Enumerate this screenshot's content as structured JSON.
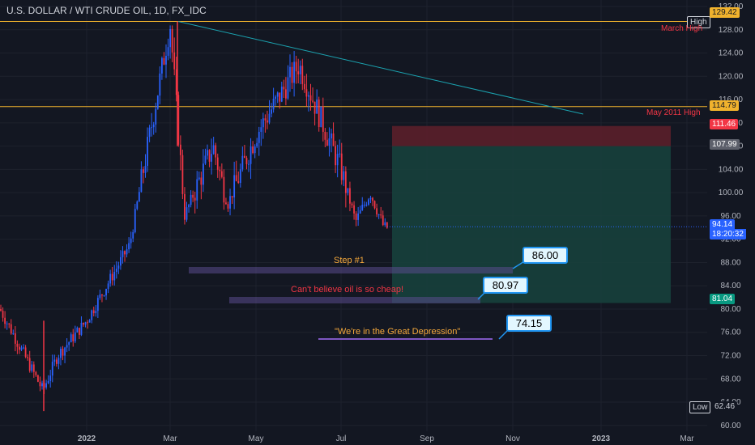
{
  "title": "U.S. DOLLAR / WTI CRUDE OIL, 1D, FX_IDC",
  "colors": {
    "background": "#131722",
    "up": "#2962ff",
    "down": "#f23645",
    "text": "#b2b5be",
    "grid": "#1e222d",
    "hline": "#f0b22d",
    "trendline": "#1ba3b0",
    "stop_zone": "#5b1f2a",
    "target_zone": "#17403c",
    "annotation_purple": "#5a4a8c",
    "annotation_orange": "#f6a93b",
    "annotation_red": "#f23645"
  },
  "price_labels": {
    "high_label": "High",
    "high_value": "129.42",
    "low_label": "Low",
    "low_value": "62.46",
    "level_114": "114.79",
    "level_111": "111.46",
    "level_108": "107.99",
    "current": "94.14",
    "countdown": "18:20:32",
    "level_81": "81.04"
  },
  "annotations": {
    "march_high": "March High",
    "may_2011_high": "May 2011 High",
    "step1": "Step #1",
    "cheap": "Can't believe oil is so cheap!",
    "depression": "\"We're in the Great Depression\"",
    "badge1": "86.00",
    "badge2": "80.97",
    "badge3": "74.15"
  },
  "chart_data": {
    "type": "candlestick",
    "title": "U.S. DOLLAR / WTI CRUDE OIL, 1D, FX_IDC",
    "x_ticks": [
      "2022",
      "Mar",
      "May",
      "Jul",
      "Sep",
      "Nov",
      "2023",
      "Mar"
    ],
    "y_ticks": [
      60,
      64,
      68,
      72,
      76,
      80,
      84,
      88,
      92,
      96,
      100,
      104,
      108,
      112,
      116,
      120,
      124,
      128,
      132
    ],
    "ylim": [
      59,
      132
    ],
    "high": 129.42,
    "low": 62.46,
    "last": 94.14,
    "horizontal_levels": [
      {
        "label": "March High",
        "value": 129.42
      },
      {
        "label": "May 2011 High",
        "value": 114.79
      }
    ],
    "position": {
      "stop_top": 111.46,
      "entry": 107.99,
      "target": 81.04
    },
    "trendline": [
      {
        "date": "Mar 2022",
        "value": 129.42
      },
      {
        "date": "Dec 2022",
        "value": 113.5
      }
    ],
    "price_path": [
      {
        "date": "Nov 2021",
        "value": 80
      },
      {
        "date": "Dec 2021",
        "value": 66
      },
      {
        "date": "Dec 2021",
        "value": 72
      },
      {
        "date": "Jan 2022",
        "value": 78
      },
      {
        "date": "Feb 2022",
        "value": 91
      },
      {
        "date": "Mar 2022",
        "value": 129
      },
      {
        "date": "Mar 2022",
        "value": 96
      },
      {
        "date": "Apr 2022",
        "value": 108
      },
      {
        "date": "Apr 2022",
        "value": 98
      },
      {
        "date": "May 2022",
        "value": 110
      },
      {
        "date": "Jun 2022",
        "value": 122
      },
      {
        "date": "Jul 2022",
        "value": 104
      },
      {
        "date": "Jul 2022",
        "value": 95
      },
      {
        "date": "Jul 2022",
        "value": 100
      },
      {
        "date": "Aug 2022",
        "value": 94
      }
    ]
  }
}
